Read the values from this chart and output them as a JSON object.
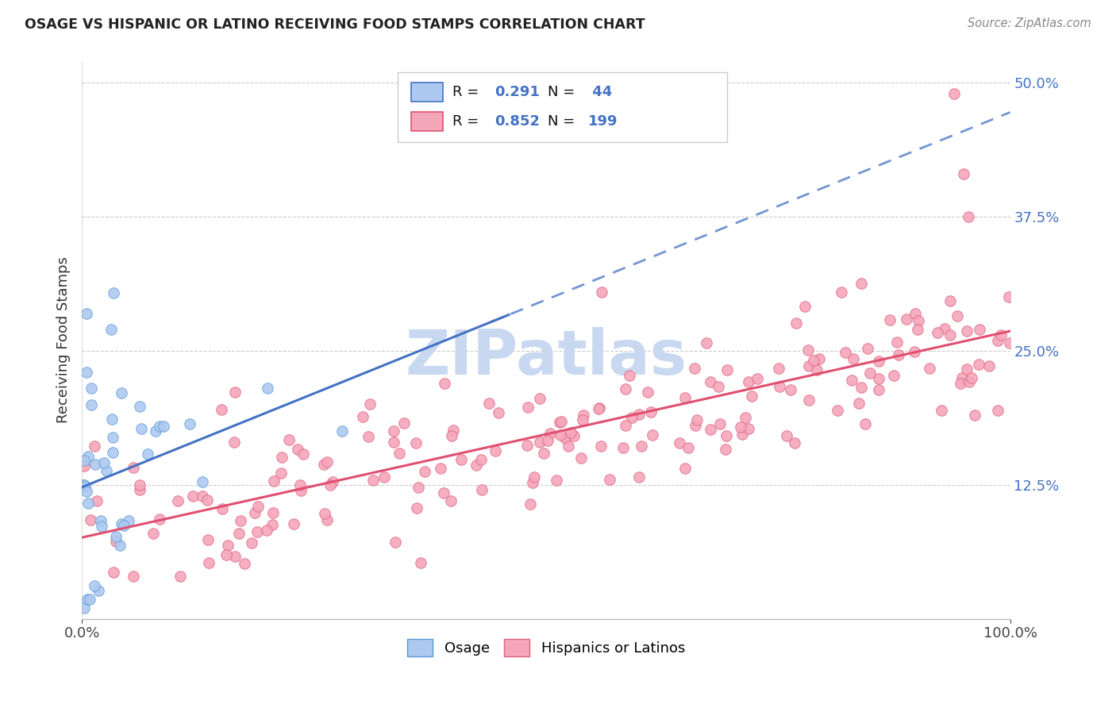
{
  "title": "OSAGE VS HISPANIC OR LATINO RECEIVING FOOD STAMPS CORRELATION CHART",
  "source": "Source: ZipAtlas.com",
  "ylabel_label": "Receiving Food Stamps",
  "legend_labels": [
    "Osage",
    "Hispanics or Latinos"
  ],
  "osage_color": "#adc9f0",
  "osage_edge_color": "#5b9bd5",
  "osage_line_color": "#4472c4",
  "hispanic_color": "#f4a7b9",
  "hispanic_edge_color": "#e06080",
  "hispanic_line_color": "#e05070",
  "osage_R": 0.291,
  "osage_N": 44,
  "hispanic_R": 0.852,
  "hispanic_N": 199,
  "watermark": "ZIPatlas",
  "watermark_color": "#c8d8f0",
  "background_color": "#ffffff",
  "grid_color": "#cccccc",
  "xlim": [
    0.0,
    1.0
  ],
  "ylim": [
    0.0,
    0.52
  ],
  "title_color": "#222222",
  "axis_color": "#333333",
  "tick_label_color_right": "#4472c4",
  "tick_label_color_x": "#444444",
  "figsize": [
    14.06,
    8.92
  ],
  "dpi": 100,
  "legend_R_N_color": "#4472c4",
  "legend_text_color": "#111111"
}
